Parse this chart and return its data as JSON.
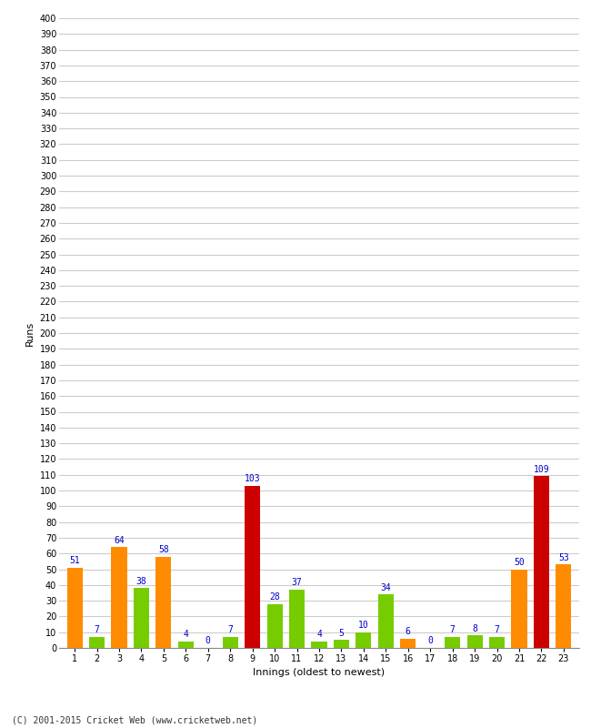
{
  "innings": [
    1,
    2,
    3,
    4,
    5,
    6,
    7,
    8,
    9,
    10,
    11,
    12,
    13,
    14,
    15,
    16,
    17,
    18,
    19,
    20,
    21,
    22,
    23
  ],
  "values": [
    51,
    7,
    64,
    38,
    58,
    4,
    0,
    7,
    103,
    28,
    37,
    4,
    5,
    10,
    34,
    6,
    0,
    7,
    8,
    7,
    50,
    109,
    53
  ],
  "colors": [
    "#FF8C00",
    "#77CC00",
    "#FF8C00",
    "#77CC00",
    "#FF8C00",
    "#77CC00",
    "#FF8C00",
    "#77CC00",
    "#CC0000",
    "#77CC00",
    "#77CC00",
    "#77CC00",
    "#77CC00",
    "#77CC00",
    "#77CC00",
    "#FF8C00",
    "#77CC00",
    "#77CC00",
    "#77CC00",
    "#77CC00",
    "#FF8C00",
    "#CC0000",
    "#FF8C00"
  ],
  "xlabel": "Innings (oldest to newest)",
  "ylabel": "Runs",
  "ylim": [
    0,
    400
  ],
  "yticks": [
    0,
    10,
    20,
    30,
    40,
    50,
    60,
    70,
    80,
    90,
    100,
    110,
    120,
    130,
    140,
    150,
    160,
    170,
    180,
    190,
    200,
    210,
    220,
    230,
    240,
    250,
    260,
    270,
    280,
    290,
    300,
    310,
    320,
    330,
    340,
    350,
    360,
    370,
    380,
    390,
    400
  ],
  "footer": "(C) 2001-2015 Cricket Web (www.cricketweb.net)",
  "label_color": "#0000CC",
  "label_fontsize": 7,
  "bg_color": "#FFFFFF",
  "grid_color": "#CCCCCC",
  "bar_width": 0.7,
  "tick_fontsize": 7,
  "xlabel_fontsize": 8,
  "ylabel_fontsize": 8
}
